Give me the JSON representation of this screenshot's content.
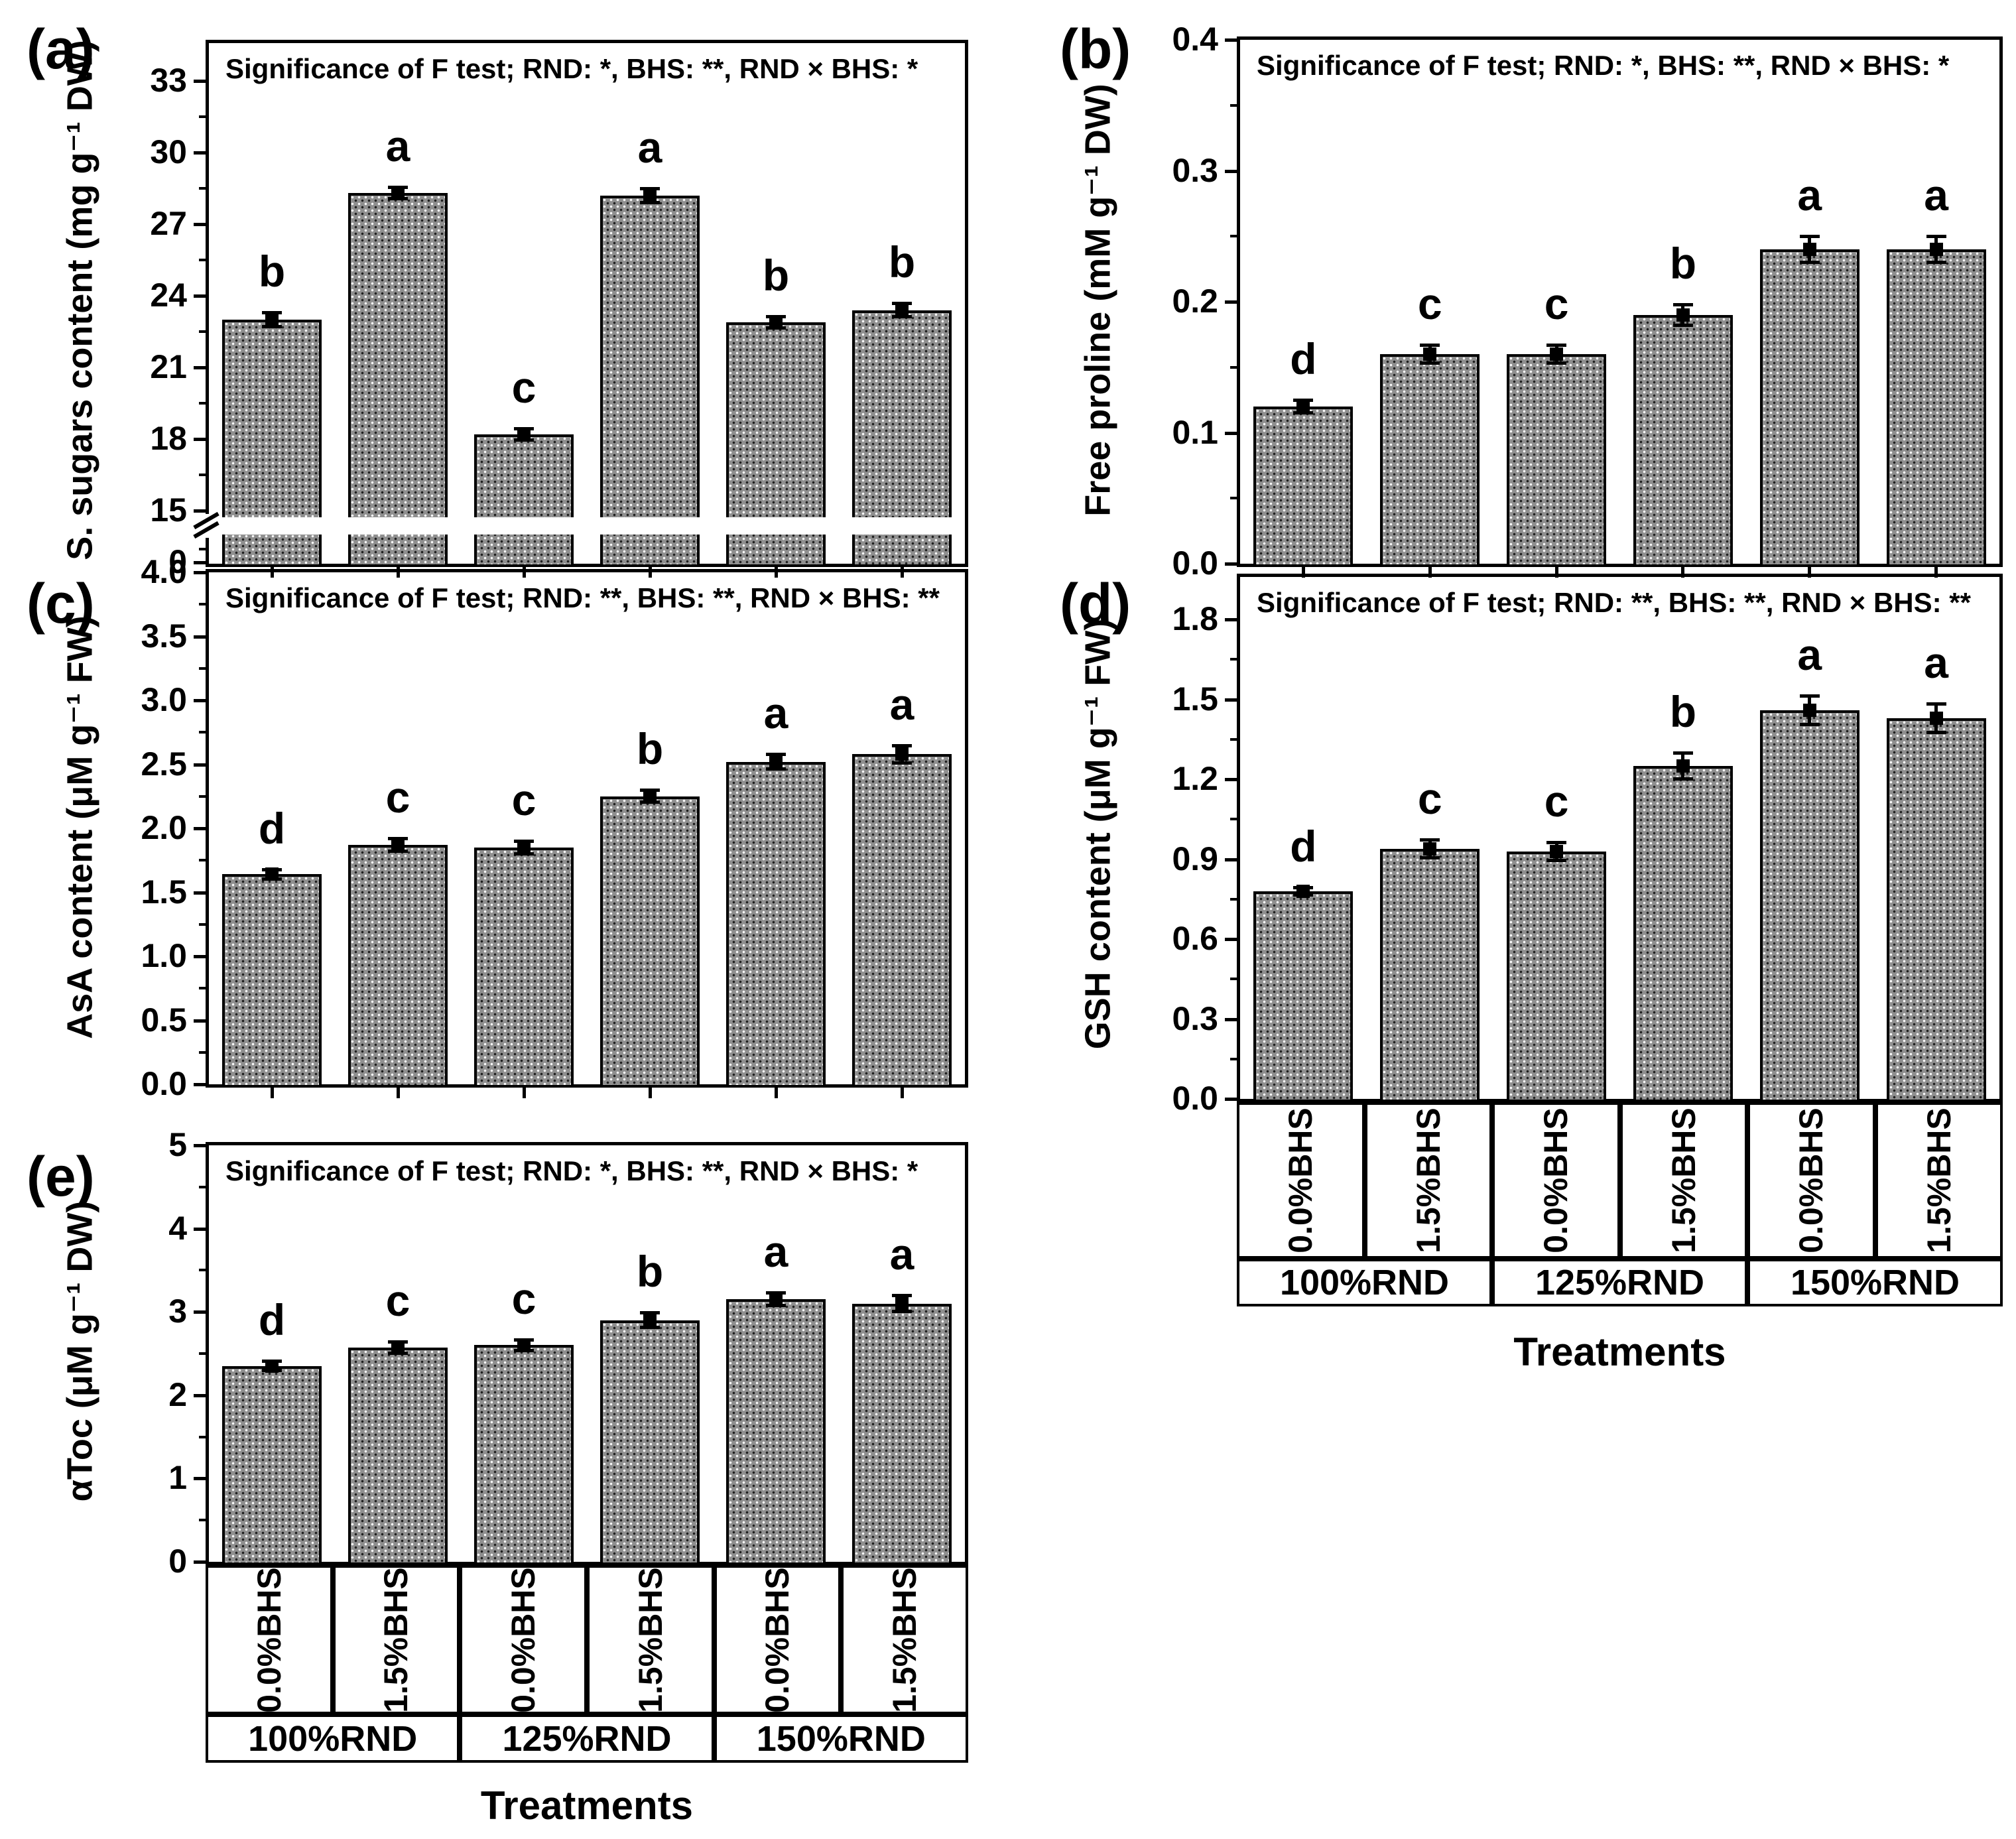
{
  "figure": {
    "background": "#ffffff",
    "bar_fill": "#8f8f8f",
    "bar_border": "#000000",
    "xlabel": "Treatments",
    "bhs_labels": [
      "0.0%BHS",
      "1.5%BHS",
      "0.0%BHS",
      "1.5%BHS",
      "0.0%BHS",
      "1.5%BHS"
    ],
    "rnd_labels": [
      "100%RND",
      "125%RND",
      "150%RND"
    ]
  },
  "chart_data": [
    {
      "id": "a",
      "type": "bar",
      "panel_label": "(a)",
      "ylabel": "S. sugars content (mg g⁻¹ DW)",
      "xlabel": "Treatments",
      "annotation": "Significance of F test; RND: *, BHS: **, RND × BHS: *",
      "categories": [
        "100%RND 0.0%BHS",
        "100%RND 1.5%BHS",
        "125%RND 0.0%BHS",
        "125%RND 1.5%BHS",
        "150%RND 0.0%BHS",
        "150%RND 1.5%BHS"
      ],
      "values": [
        23.0,
        28.3,
        18.2,
        28.2,
        22.9,
        23.4
      ],
      "errors": [
        0.3,
        0.25,
        0.25,
        0.3,
        0.25,
        0.3
      ],
      "sig_letters": [
        "b",
        "a",
        "c",
        "a",
        "b",
        "b"
      ],
      "ytick_values": [
        0,
        15,
        18,
        21,
        24,
        27,
        30,
        33
      ],
      "ytick_labels": [
        "0",
        "15",
        "18",
        "21",
        "24",
        "27",
        "30",
        "33"
      ],
      "ylim": [
        0,
        34.6
      ],
      "axis_break": {
        "low": 0,
        "high": 15
      },
      "grid": false,
      "legend": null
    },
    {
      "id": "b",
      "type": "bar",
      "panel_label": "(b)",
      "ylabel": "Free proline (mM g⁻¹ DW)",
      "xlabel": "Treatments",
      "annotation": "Significance of F test; RND: *, BHS: **, RND × BHS: *",
      "categories": [
        "100%RND 0.0%BHS",
        "100%RND 1.5%BHS",
        "125%RND 0.0%BHS",
        "125%RND 1.5%BHS",
        "150%RND 0.0%BHS",
        "150%RND 1.5%BHS"
      ],
      "values": [
        0.12,
        0.16,
        0.16,
        0.19,
        0.24,
        0.24
      ],
      "errors": [
        0.005,
        0.007,
        0.007,
        0.008,
        0.01,
        0.01
      ],
      "sig_letters": [
        "d",
        "c",
        "c",
        "b",
        "a",
        "a"
      ],
      "ytick_values": [
        0.0,
        0.1,
        0.2,
        0.3,
        0.4
      ],
      "ytick_labels": [
        "0.0",
        "0.1",
        "0.2",
        "0.3",
        "0.4"
      ],
      "ylim": [
        0,
        0.4
      ],
      "axis_break": null,
      "grid": false,
      "legend": null
    },
    {
      "id": "c",
      "type": "bar",
      "panel_label": "(c)",
      "ylabel": "AsA content (μM g⁻¹ FW)",
      "xlabel": "Treatments",
      "annotation": "Significance of F test; RND: **, BHS: **, RND × BHS: **",
      "categories": [
        "100%RND 0.0%BHS",
        "100%RND 1.5%BHS",
        "125%RND 0.0%BHS",
        "125%RND 1.5%BHS",
        "150%RND 0.0%BHS",
        "150%RND 1.5%BHS"
      ],
      "values": [
        1.64,
        1.87,
        1.85,
        2.25,
        2.52,
        2.58
      ],
      "errors": [
        0.04,
        0.05,
        0.05,
        0.05,
        0.06,
        0.07
      ],
      "sig_letters": [
        "d",
        "c",
        "c",
        "b",
        "a",
        "a"
      ],
      "ytick_values": [
        0.0,
        0.5,
        1.0,
        1.5,
        2.0,
        2.5,
        3.0,
        3.5,
        4.0
      ],
      "ytick_labels": [
        "0.0",
        "0.5",
        "1.0",
        "1.5",
        "2.0",
        "2.5",
        "3.0",
        "3.5",
        "4.0"
      ],
      "ylim": [
        0,
        4.0
      ],
      "axis_break": null,
      "grid": false,
      "legend": null
    },
    {
      "id": "d",
      "type": "bar",
      "panel_label": "(d)",
      "ylabel": "GSH content (μM g⁻¹ FW)",
      "xlabel": "Treatments",
      "annotation": "Significance of F test; RND: **, BHS: **, RND × BHS: **",
      "categories": [
        "100%RND 0.0%BHS",
        "100%RND 1.5%BHS",
        "125%RND 0.0%BHS",
        "125%RND 1.5%BHS",
        "150%RND 0.0%BHS",
        "150%RND 1.5%BHS"
      ],
      "values": [
        0.78,
        0.94,
        0.93,
        1.25,
        1.46,
        1.43
      ],
      "errors": [
        0.015,
        0.035,
        0.035,
        0.05,
        0.055,
        0.055
      ],
      "sig_letters": [
        "d",
        "c",
        "c",
        "b",
        "a",
        "a"
      ],
      "ytick_values": [
        0.0,
        0.3,
        0.6,
        0.9,
        1.2,
        1.5,
        1.8
      ],
      "ytick_labels": [
        "0.0",
        "0.3",
        "0.6",
        "0.9",
        "1.2",
        "1.5",
        "1.8"
      ],
      "ylim": [
        0,
        1.96
      ],
      "axis_break": null,
      "grid": false,
      "legend": null
    },
    {
      "id": "e",
      "type": "bar",
      "panel_label": "(e)",
      "ylabel": "αToc (μM g⁻¹ DW)",
      "xlabel": "Treatments",
      "annotation": "Significance of F test; RND: *, BHS: **, RND × BHS: *",
      "categories": [
        "100%RND 0.0%BHS",
        "100%RND 1.5%BHS",
        "125%RND 0.0%BHS",
        "125%RND 1.5%BHS",
        "150%RND 0.0%BHS",
        "150%RND 1.5%BHS"
      ],
      "values": [
        2.35,
        2.57,
        2.6,
        2.9,
        3.15,
        3.1
      ],
      "errors": [
        0.06,
        0.07,
        0.07,
        0.09,
        0.08,
        0.1
      ],
      "sig_letters": [
        "d",
        "c",
        "c",
        "b",
        "a",
        "a"
      ],
      "ytick_values": [
        0,
        1,
        2,
        3,
        4,
        5
      ],
      "ytick_labels": [
        "0",
        "1",
        "2",
        "3",
        "4",
        "5"
      ],
      "ylim": [
        0,
        5.0
      ],
      "axis_break": null,
      "grid": false,
      "legend": null
    }
  ]
}
